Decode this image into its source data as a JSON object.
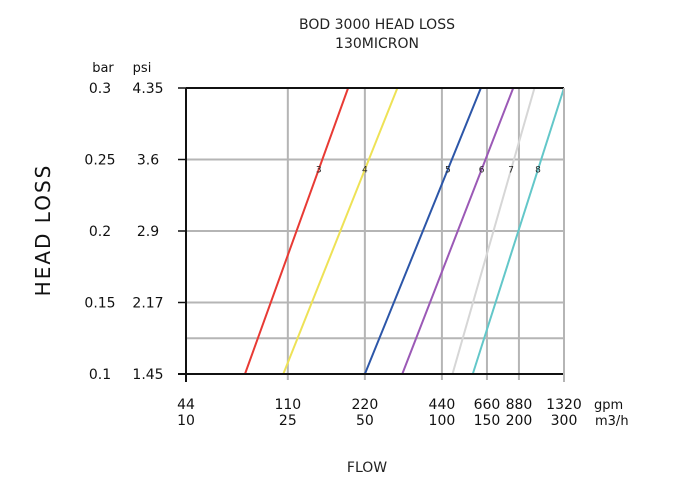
{
  "chart_data": {
    "type": "line",
    "title": "BOD 3000 HEAD LOSS",
    "subtitle": "130MICRON",
    "xlabel": "FLOW",
    "ylabel": "HEAD LOSS",
    "x_units": [
      "gpm",
      "m3/h"
    ],
    "y_units": [
      "bar",
      "psi"
    ],
    "x_ticks": [
      {
        "gpm": "44",
        "m3h": "10"
      },
      {
        "gpm": "110",
        "m3h": "25"
      },
      {
        "gpm": "220",
        "m3h": "50"
      },
      {
        "gpm": "440",
        "m3h": "100"
      },
      {
        "gpm": "660",
        "m3h": "150"
      },
      {
        "gpm": "880",
        "m3h": "200"
      },
      {
        "gpm": "1320",
        "m3h": "300"
      }
    ],
    "y_ticks": [
      {
        "bar": "0.1",
        "psi": "1.45"
      },
      {
        "bar": "0.15",
        "psi": "2.17"
      },
      {
        "bar": "0.2",
        "psi": "2.9"
      },
      {
        "bar": "0.25",
        "psi": "3.6"
      },
      {
        "bar": "0.3",
        "psi": "4.35"
      }
    ],
    "ylim_bar": [
      0.1,
      0.3
    ],
    "grid": true,
    "series": [
      {
        "name": "3",
        "color": "#e83a34",
        "points": [
          [
            17,
            0.1
          ],
          [
            43,
            0.3
          ]
        ]
      },
      {
        "name": "4",
        "color": "#eee256",
        "points": [
          [
            24,
            0.1
          ],
          [
            67,
            0.3
          ]
        ]
      },
      {
        "name": "5",
        "color": "#2c56a8",
        "points": [
          [
            50,
            0.1
          ],
          [
            142,
            0.3
          ]
        ]
      },
      {
        "name": "6",
        "color": "#9b59b6",
        "points": [
          [
            70,
            0.1
          ],
          [
            190,
            0.3
          ]
        ]
      },
      {
        "name": "7",
        "color": "#d6d6d6",
        "points": [
          [
            110,
            0.1
          ],
          [
            230,
            0.3
          ]
        ]
      },
      {
        "name": "8",
        "color": "#63c7c9",
        "points": [
          [
            132,
            0.1
          ],
          [
            300,
            0.3
          ]
        ]
      }
    ]
  }
}
